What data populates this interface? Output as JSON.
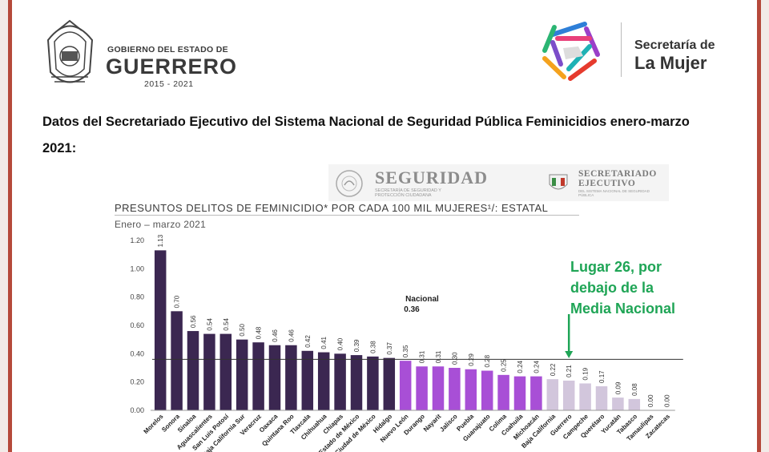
{
  "header": {
    "gov_small": "GOBIERNO DEL ESTADO DE",
    "gov_big": "GUERRERO",
    "gov_years": "2015 - 2021",
    "sec_line1": "Secretaría de",
    "sec_line2": "La Mujer"
  },
  "heading": "Datos del Secretariado Ejecutivo del Sistema Nacional de Seguridad Pública Feminicidios enero-marzo 2021:",
  "banner": {
    "seg_title": "SEGURIDAD",
    "seg_sub": "SECRETARÍA DE SEGURIDAD Y PROTECCIÓN CIUDADANA",
    "sesn_title_1": "SECRETARIADO",
    "sesn_title_2": "EJECUTIVO",
    "sesn_sub": "DEL SISTEMA NACIONAL DE SEGURIDAD PÚBLICA"
  },
  "annotation": {
    "line1": "Lugar 26, por",
    "line2": "debajo de la",
    "line3": "Media Nacional"
  },
  "colors": {
    "dark_bar": "#3b2751",
    "mid_bar": "#a84fd6",
    "light_bar": "#d2c6dc",
    "annotation": "#1fa556",
    "frame": "#b5493b"
  },
  "chart_data": {
    "type": "bar",
    "title": "PRESUNTOS DELITOS DE FEMINICIDIO* POR CADA 100 MIL MUJERES¹/: ESTATAL",
    "subtitle": "Enero – marzo 2021",
    "xlabel": "",
    "ylabel": "",
    "ylim": [
      0,
      1.2
    ],
    "yticks": [
      "0.00",
      "0.20",
      "0.40",
      "0.60",
      "0.80",
      "1.00",
      "1.20"
    ],
    "categories": [
      "Morelos",
      "Sonora",
      "Sinaloa",
      "Aguascalientes",
      "San Luis Potosí",
      "Baja California Sur",
      "Veracruz",
      "Oaxaca",
      "Quintana Roo",
      "Tlaxcala",
      "Chihuahua",
      "Chiapas",
      "Estado de México",
      "Ciudad de México",
      "Hidalgo",
      "Nuevo León",
      "Durango",
      "Nayarit",
      "Jalisco",
      "Puebla",
      "Guanajuato",
      "Colima",
      "Coahuila",
      "Michoacán",
      "Baja California",
      "Guerrero",
      "Campeche",
      "Querétaro",
      "Yucatán",
      "Tabasco",
      "Tamaulipas",
      "Zacatecas"
    ],
    "values": [
      1.13,
      0.7,
      0.56,
      0.54,
      0.54,
      0.5,
      0.48,
      0.46,
      0.46,
      0.42,
      0.41,
      0.4,
      0.39,
      0.38,
      0.37,
      0.35,
      0.31,
      0.31,
      0.3,
      0.29,
      0.28,
      0.25,
      0.24,
      0.24,
      0.22,
      0.21,
      0.19,
      0.17,
      0.09,
      0.08,
      0.0,
      0.0
    ],
    "value_labels": [
      "1.13",
      "0.70",
      "0.56",
      "0.54",
      "0.54",
      "0.50",
      "0.48",
      "0.46",
      "0.46",
      "0.42",
      "0.41",
      "0.40",
      "0.39",
      "0.38",
      "0.37",
      "0.35",
      "0.31",
      "0.31",
      "0.30",
      "0.29",
      "0.28",
      "0.25",
      "0.24",
      "0.24",
      "0.22",
      "0.21",
      "0.19",
      "0.17",
      "0.09",
      "0.08",
      "0.00",
      "0.00"
    ],
    "groups": [
      "dark",
      "dark",
      "dark",
      "dark",
      "dark",
      "dark",
      "dark",
      "dark",
      "dark",
      "dark",
      "dark",
      "dark",
      "dark",
      "dark",
      "dark",
      "mid",
      "mid",
      "mid",
      "mid",
      "mid",
      "mid",
      "mid",
      "mid",
      "mid",
      "light",
      "light",
      "light",
      "light",
      "light",
      "light",
      "light",
      "light"
    ],
    "reference_line": {
      "label": "Nacional",
      "value": 0.36,
      "value_label": "0.36"
    },
    "grid": false,
    "legend": "none"
  }
}
